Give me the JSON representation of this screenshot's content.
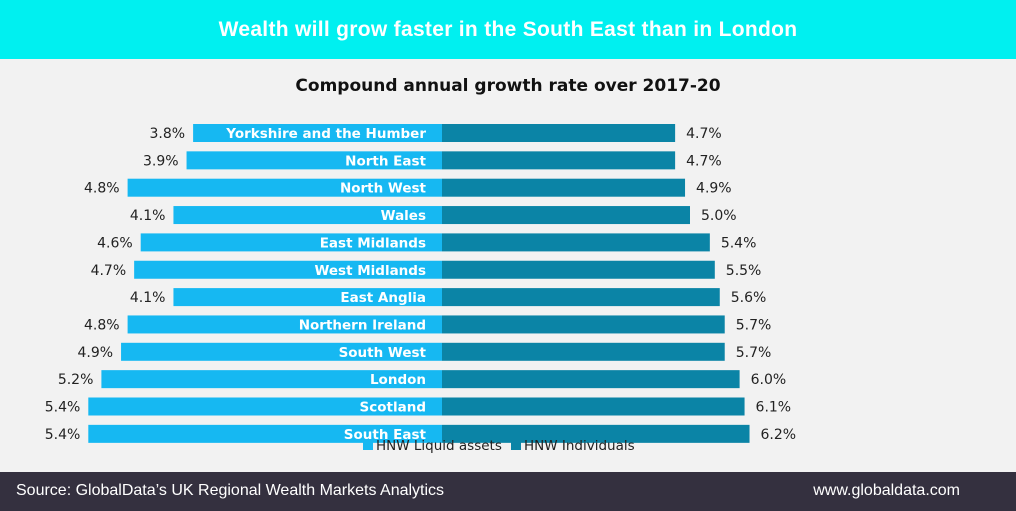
{
  "banner": {
    "title": "Wealth will grow faster in the South East than in London"
  },
  "colors": {
    "banner_bg": "#00f0f0",
    "left_bar": "#16b8f2",
    "right_bar": "#0b84a6",
    "footer_bg": "#34303f"
  },
  "chart_data": {
    "type": "bar",
    "orientation": "horizontal-diverging",
    "title": "Compound annual growth rate over 2017-20",
    "categories": [
      "Yorkshire and the Humber",
      "North East",
      "North West",
      "Wales",
      "East Midlands",
      "West Midlands",
      "East Anglia",
      "Northern Ireland",
      "South West",
      "London",
      "Scotland",
      "South East"
    ],
    "series": [
      {
        "name": "HNW Liquid assets",
        "color": "#16b8f2",
        "values": [
          3.8,
          3.9,
          4.8,
          4.1,
          4.6,
          4.7,
          4.1,
          4.8,
          4.9,
          5.2,
          5.4,
          5.4
        ],
        "labels": [
          "3.8%",
          "3.9%",
          "4.8%",
          "4.1%",
          "4.6%",
          "4.7%",
          "4.1%",
          "4.8%",
          "4.9%",
          "5.2%",
          "5.4%",
          "5.4%"
        ]
      },
      {
        "name": "HNW Individuals",
        "color": "#0b84a6",
        "values": [
          4.7,
          4.7,
          4.9,
          5.0,
          5.4,
          5.5,
          5.6,
          5.7,
          5.7,
          6.0,
          6.1,
          6.2
        ],
        "labels": [
          "4.7%",
          "4.7%",
          "4.9%",
          "5.0%",
          "5.4%",
          "5.5%",
          "5.6%",
          "5.7%",
          "5.7%",
          "6.0%",
          "6.1%",
          "6.2%"
        ]
      }
    ],
    "legend": "bottom-center",
    "grid": false
  },
  "footer": {
    "source": "Source: GlobalData’s  UK Regional  Wealth Markets  Analytics",
    "url": "www.globaldata.com"
  }
}
